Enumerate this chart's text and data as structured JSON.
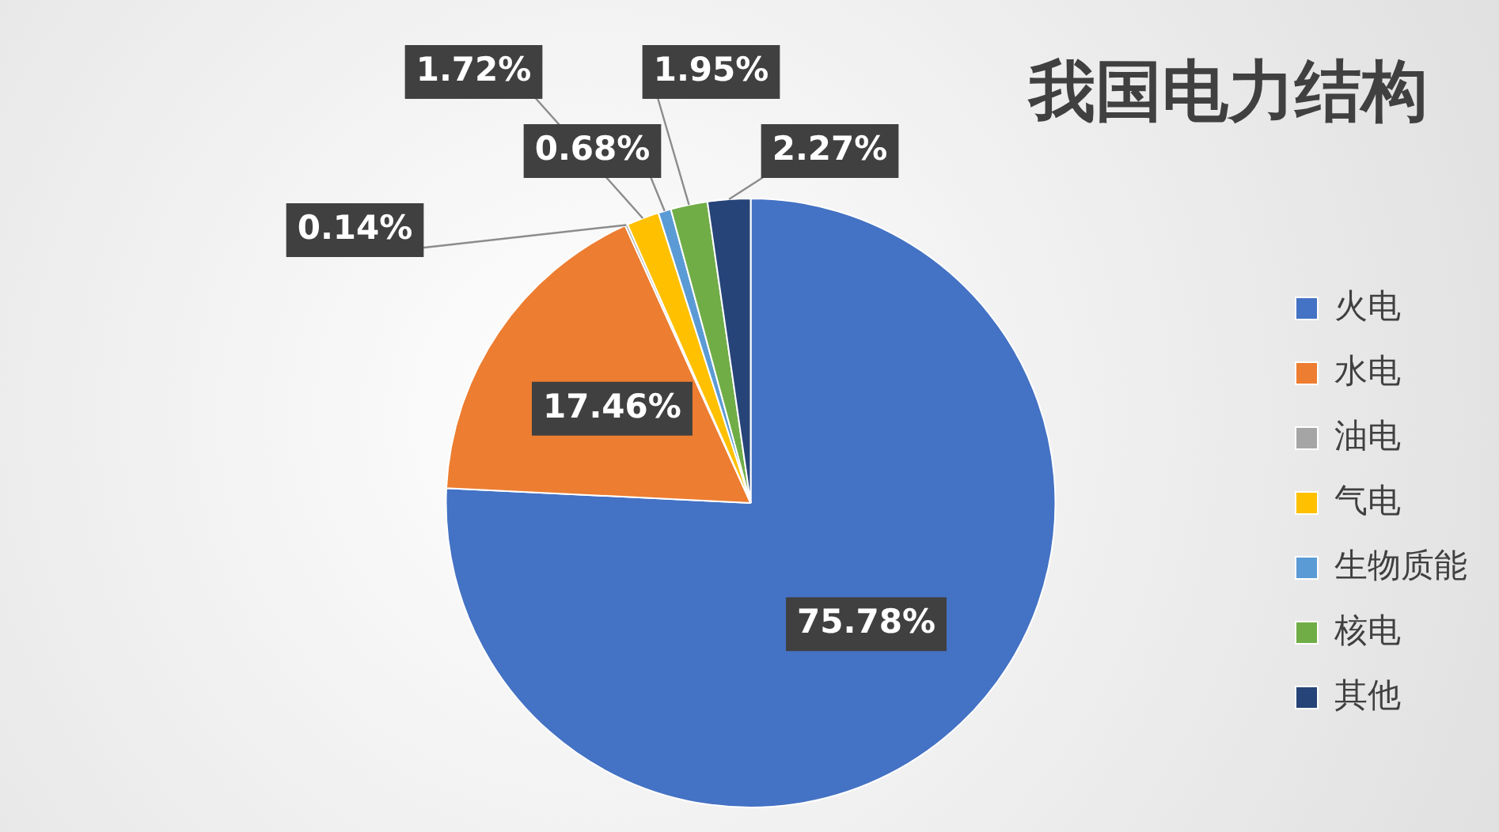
{
  "chart_data": {
    "type": "pie",
    "title": "我国电力结构",
    "categories": [
      "火电",
      "水电",
      "油电",
      "气电",
      "生物质能",
      "核电",
      "其他"
    ],
    "values": [
      75.78,
      17.46,
      0.14,
      1.72,
      0.68,
      1.95,
      2.27
    ],
    "colors": [
      "#4472c4",
      "#ed7d31",
      "#a5a5a5",
      "#ffc000",
      "#5b9bd5",
      "#70ad47",
      "#264478"
    ],
    "value_labels": [
      "75.78%",
      "17.46%",
      "0.14%",
      "1.72%",
      "0.68%",
      "1.95%",
      "2.27%"
    ],
    "legend": "right"
  }
}
